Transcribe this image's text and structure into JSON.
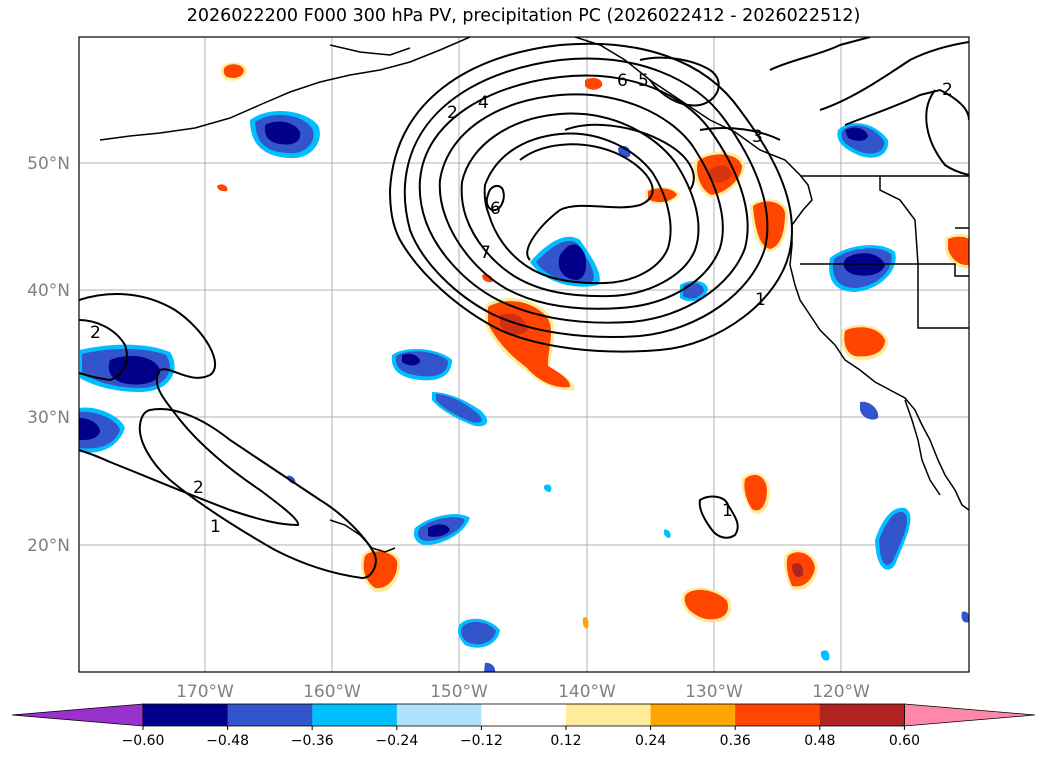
{
  "title": "2026022200 F000 300 hPa PV, precipitation PC (2026022412 - 2026022512)",
  "lat_labels": [
    "50°N",
    "40°N",
    "30°N",
    "20°N"
  ],
  "lon_labels": [
    "170°W",
    "160°W",
    "150°W",
    "140°W",
    "130°W",
    "120°W"
  ],
  "colorbar": {
    "ticks": [
      "−0.60",
      "−0.48",
      "−0.36",
      "−0.24",
      "−0.12",
      "0.12",
      "0.24",
      "0.36",
      "0.48",
      "0.60"
    ],
    "colors": [
      "#9932cc",
      "#00008b",
      "#3355cc",
      "#00bfff",
      "#b0e2ff",
      "#ffffff",
      "#ffeb99",
      "#ffa500",
      "#ff4500",
      "#b22222",
      "#ff88aa"
    ]
  },
  "contour_labels": [
    "2",
    "4",
    "6",
    "5",
    "3",
    "6",
    "7",
    "1",
    "2",
    "2",
    "1",
    "1",
    "2"
  ],
  "colors": {
    "strong_positive": "#ff4500",
    "negative": "#3355cc",
    "deep_negative": "#00008b"
  }
}
